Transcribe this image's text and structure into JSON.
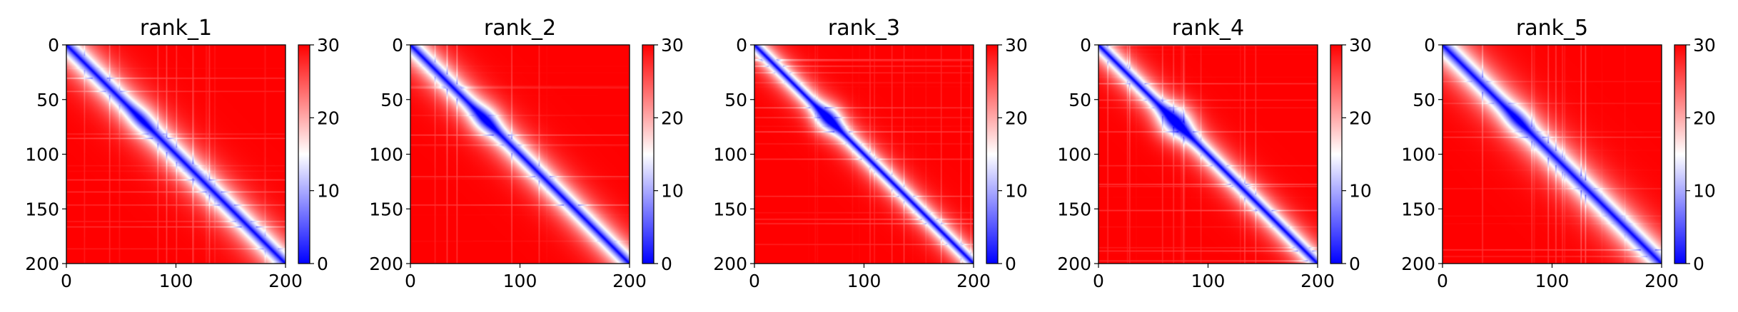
{
  "chart_data": {
    "type": "heatmap",
    "colormap": {
      "name": "bwr",
      "stops": [
        "#0000ff",
        "#ffffff",
        "#ff0000"
      ],
      "range": [
        0,
        30
      ]
    },
    "panels": [
      {
        "title": "rank_1",
        "features": [
          {
            "center": 68,
            "strength": 0.25,
            "radius": 10
          }
        ],
        "near_width": 14,
        "seed": 11
      },
      {
        "title": "rank_2",
        "features": [
          {
            "center": 68,
            "strength": 0.45,
            "radius": 10
          }
        ],
        "near_width": 13,
        "seed": 23
      },
      {
        "title": "rank_3",
        "features": [
          {
            "center": 67,
            "strength": 0.7,
            "radius": 10
          }
        ],
        "near_width": 10,
        "seed": 37
      },
      {
        "title": "rank_4",
        "features": [
          {
            "center": 70,
            "strength": 0.75,
            "radius": 12
          }
        ],
        "near_width": 11,
        "seed": 41
      },
      {
        "title": "rank_5",
        "features": [
          {
            "center": 68,
            "strength": 0.3,
            "radius": 10
          }
        ],
        "near_width": 15,
        "seed": 53
      }
    ],
    "matrix_size": 200,
    "max_distance": 30,
    "x_ticks": [
      0,
      100,
      200
    ],
    "y_ticks": [
      0,
      50,
      100,
      150,
      200
    ],
    "colorbar_ticks": [
      0,
      10,
      20,
      30
    ],
    "xlabel": "",
    "ylabel": ""
  }
}
